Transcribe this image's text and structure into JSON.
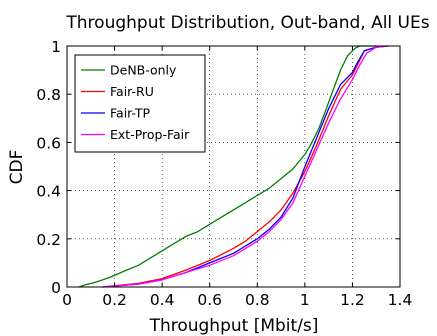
{
  "chart_data": {
    "type": "line",
    "title": "Throughput Distribution, Out-band, All UEs",
    "xlabel": "Throughput [Mbit/s]",
    "ylabel": "CDF",
    "xlim": [
      0,
      1.4
    ],
    "ylim": [
      0,
      1
    ],
    "x_ticks": [
      "0",
      "0.2",
      "0.4",
      "0.6",
      "0.8",
      "1",
      "1.2",
      "1.4"
    ],
    "y_ticks": [
      "0",
      "0.2",
      "0.4",
      "0.6",
      "0.8",
      "1"
    ],
    "grid": true,
    "grid_style": "dotted",
    "legend_position": "top-left",
    "series": [
      {
        "name": "DeNB-only",
        "color": "#008000",
        "x": [
          0.05,
          0.08,
          0.12,
          0.18,
          0.25,
          0.3,
          0.35,
          0.4,
          0.45,
          0.5,
          0.55,
          0.6,
          0.65,
          0.7,
          0.75,
          0.8,
          0.85,
          0.9,
          0.95,
          1.0,
          1.03,
          1.06,
          1.09,
          1.12,
          1.15,
          1.18,
          1.21,
          1.23,
          1.25,
          1.3
        ],
        "y": [
          0.0,
          0.01,
          0.02,
          0.04,
          0.07,
          0.09,
          0.12,
          0.15,
          0.18,
          0.21,
          0.23,
          0.26,
          0.29,
          0.32,
          0.35,
          0.38,
          0.41,
          0.45,
          0.49,
          0.55,
          0.6,
          0.66,
          0.74,
          0.82,
          0.9,
          0.96,
          0.99,
          1.0,
          1.0,
          1.0
        ]
      },
      {
        "name": "Fair-RU",
        "color": "#ff0000",
        "x": [
          0.15,
          0.2,
          0.3,
          0.4,
          0.5,
          0.6,
          0.7,
          0.75,
          0.8,
          0.85,
          0.9,
          0.95,
          1.0,
          1.05,
          1.1,
          1.15,
          1.2,
          1.22,
          1.25,
          1.3,
          1.35
        ],
        "y": [
          0.0,
          0.005,
          0.015,
          0.035,
          0.07,
          0.11,
          0.16,
          0.19,
          0.23,
          0.27,
          0.32,
          0.39,
          0.48,
          0.59,
          0.71,
          0.82,
          0.88,
          0.92,
          0.98,
          0.995,
          1.0
        ]
      },
      {
        "name": "Fair-TP",
        "color": "#0000ff",
        "x": [
          0.15,
          0.2,
          0.3,
          0.4,
          0.5,
          0.6,
          0.7,
          0.75,
          0.8,
          0.85,
          0.9,
          0.95,
          1.0,
          1.05,
          1.1,
          1.15,
          1.2,
          1.22,
          1.25,
          1.3,
          1.35
        ],
        "y": [
          0.0,
          0.004,
          0.012,
          0.03,
          0.06,
          0.1,
          0.14,
          0.17,
          0.2,
          0.24,
          0.29,
          0.37,
          0.5,
          0.62,
          0.74,
          0.84,
          0.89,
          0.93,
          0.98,
          0.995,
          1.0
        ]
      },
      {
        "name": "Ext-Prop-Fair",
        "color": "#ff00ff",
        "x": [
          0.15,
          0.2,
          0.3,
          0.4,
          0.5,
          0.6,
          0.7,
          0.75,
          0.8,
          0.85,
          0.9,
          0.95,
          1.0,
          1.05,
          1.1,
          1.15,
          1.2,
          1.23,
          1.26,
          1.3,
          1.35
        ],
        "y": [
          0.0,
          0.004,
          0.012,
          0.03,
          0.06,
          0.09,
          0.13,
          0.16,
          0.19,
          0.23,
          0.28,
          0.35,
          0.46,
          0.57,
          0.68,
          0.78,
          0.86,
          0.92,
          0.97,
          0.995,
          1.0
        ]
      }
    ]
  }
}
